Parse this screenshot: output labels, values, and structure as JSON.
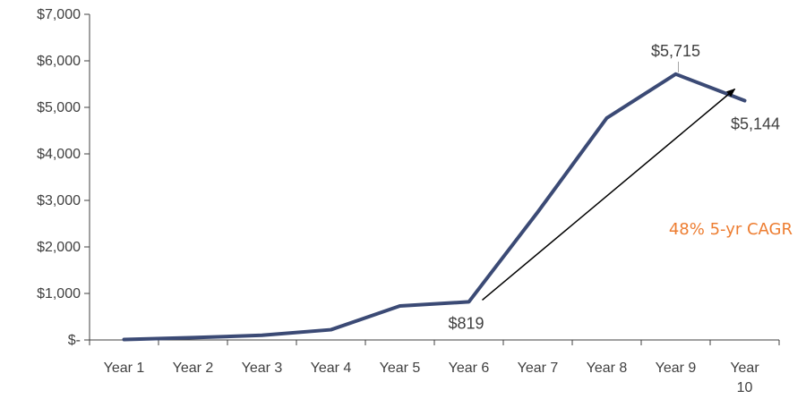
{
  "chart_data": {
    "type": "line",
    "title": "",
    "xlabel": "",
    "ylabel": "",
    "categories": [
      "Year 1",
      "Year 2",
      "Year 3",
      "Year 4",
      "Year 5",
      "Year 6",
      "Year 7",
      "Year 8",
      "Year 9",
      "Year 10"
    ],
    "category_labels": [
      [
        "Year 1"
      ],
      [
        "Year 2"
      ],
      [
        "Year 3"
      ],
      [
        "Year 4"
      ],
      [
        "Year 5"
      ],
      [
        "Year 6"
      ],
      [
        "Year 7"
      ],
      [
        "Year 8"
      ],
      [
        "Year 9"
      ],
      [
        "Year",
        "10"
      ]
    ],
    "series": [
      {
        "values": [
          10,
          50,
          100,
          220,
          730,
          819,
          2750,
          4770,
          5715,
          5144
        ]
      }
    ],
    "ylim": [
      0,
      7000
    ],
    "yticks": [
      0,
      1000,
      2000,
      3000,
      4000,
      5000,
      6000,
      7000
    ],
    "ytick_labels": [
      "$-",
      "$1,000",
      "$2,000",
      "$3,000",
      "$4,000",
      "$5,000",
      "$6,000",
      "$7,000"
    ],
    "grid": false,
    "data_labels": [
      {
        "category": "Year 6",
        "text": "$819"
      },
      {
        "category": "Year 9",
        "text": "$5,715"
      },
      {
        "category": "Year 10",
        "text": "$5,144"
      }
    ],
    "annotation": {
      "text": "48% 5-yr CAGR",
      "color": "#ED7D31",
      "arrow_from": {
        "category": "Year 6",
        "value": 819
      },
      "arrow_to": {
        "category": "Year 10",
        "value": 5144
      }
    },
    "colors": {
      "line": "#3B4A75",
      "axis": "#404040",
      "text": "#404040",
      "arrow": "#000000"
    }
  }
}
